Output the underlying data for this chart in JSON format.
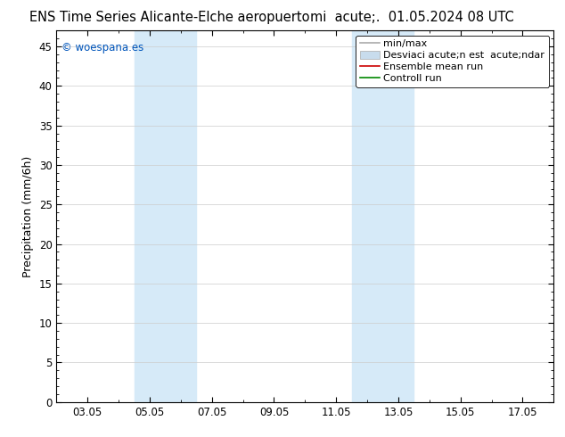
{
  "title_left": "ENS Time Series Alicante-Elche aeropuerto",
  "title_right": "mi  acute;.  01.05.2024 08 UTC",
  "ylabel": "Precipitation (mm/6h)",
  "ylim": [
    0,
    47
  ],
  "yticks": [
    0,
    5,
    10,
    15,
    20,
    25,
    30,
    35,
    40,
    45
  ],
  "xtick_labels": [
    "03.05",
    "05.05",
    "07.05",
    "09.05",
    "11.05",
    "13.05",
    "15.05",
    "17.05"
  ],
  "xtick_positions": [
    2,
    4,
    6,
    8,
    10,
    12,
    14,
    16
  ],
  "xlim": [
    1,
    17
  ],
  "shaded_regions": [
    {
      "x_start": 3.5,
      "x_end": 5.5,
      "color": "#d6eaf8"
    },
    {
      "x_start": 10.5,
      "x_end": 12.5,
      "color": "#d6eaf8"
    }
  ],
  "background_color": "#ffffff",
  "plot_bg_color": "#ffffff",
  "watermark_text": "© woespana.es",
  "watermark_color": "#0055bb",
  "legend_label_minmax": "min/max",
  "legend_label_desv": "Desviaci acute;n est  acute;ndar",
  "legend_label_ens": "Ensemble mean run",
  "legend_label_ctrl": "Controll run",
  "legend_color_minmax": "#aaaaaa",
  "legend_color_desv": "#c8dced",
  "legend_color_ens": "#cc0000",
  "legend_color_ctrl": "#008800",
  "grid_color": "#cccccc",
  "tick_color": "#000000",
  "title_fontsize": 10.5,
  "axis_label_fontsize": 9,
  "tick_fontsize": 8.5,
  "legend_fontsize": 8,
  "watermark_fontsize": 8.5
}
